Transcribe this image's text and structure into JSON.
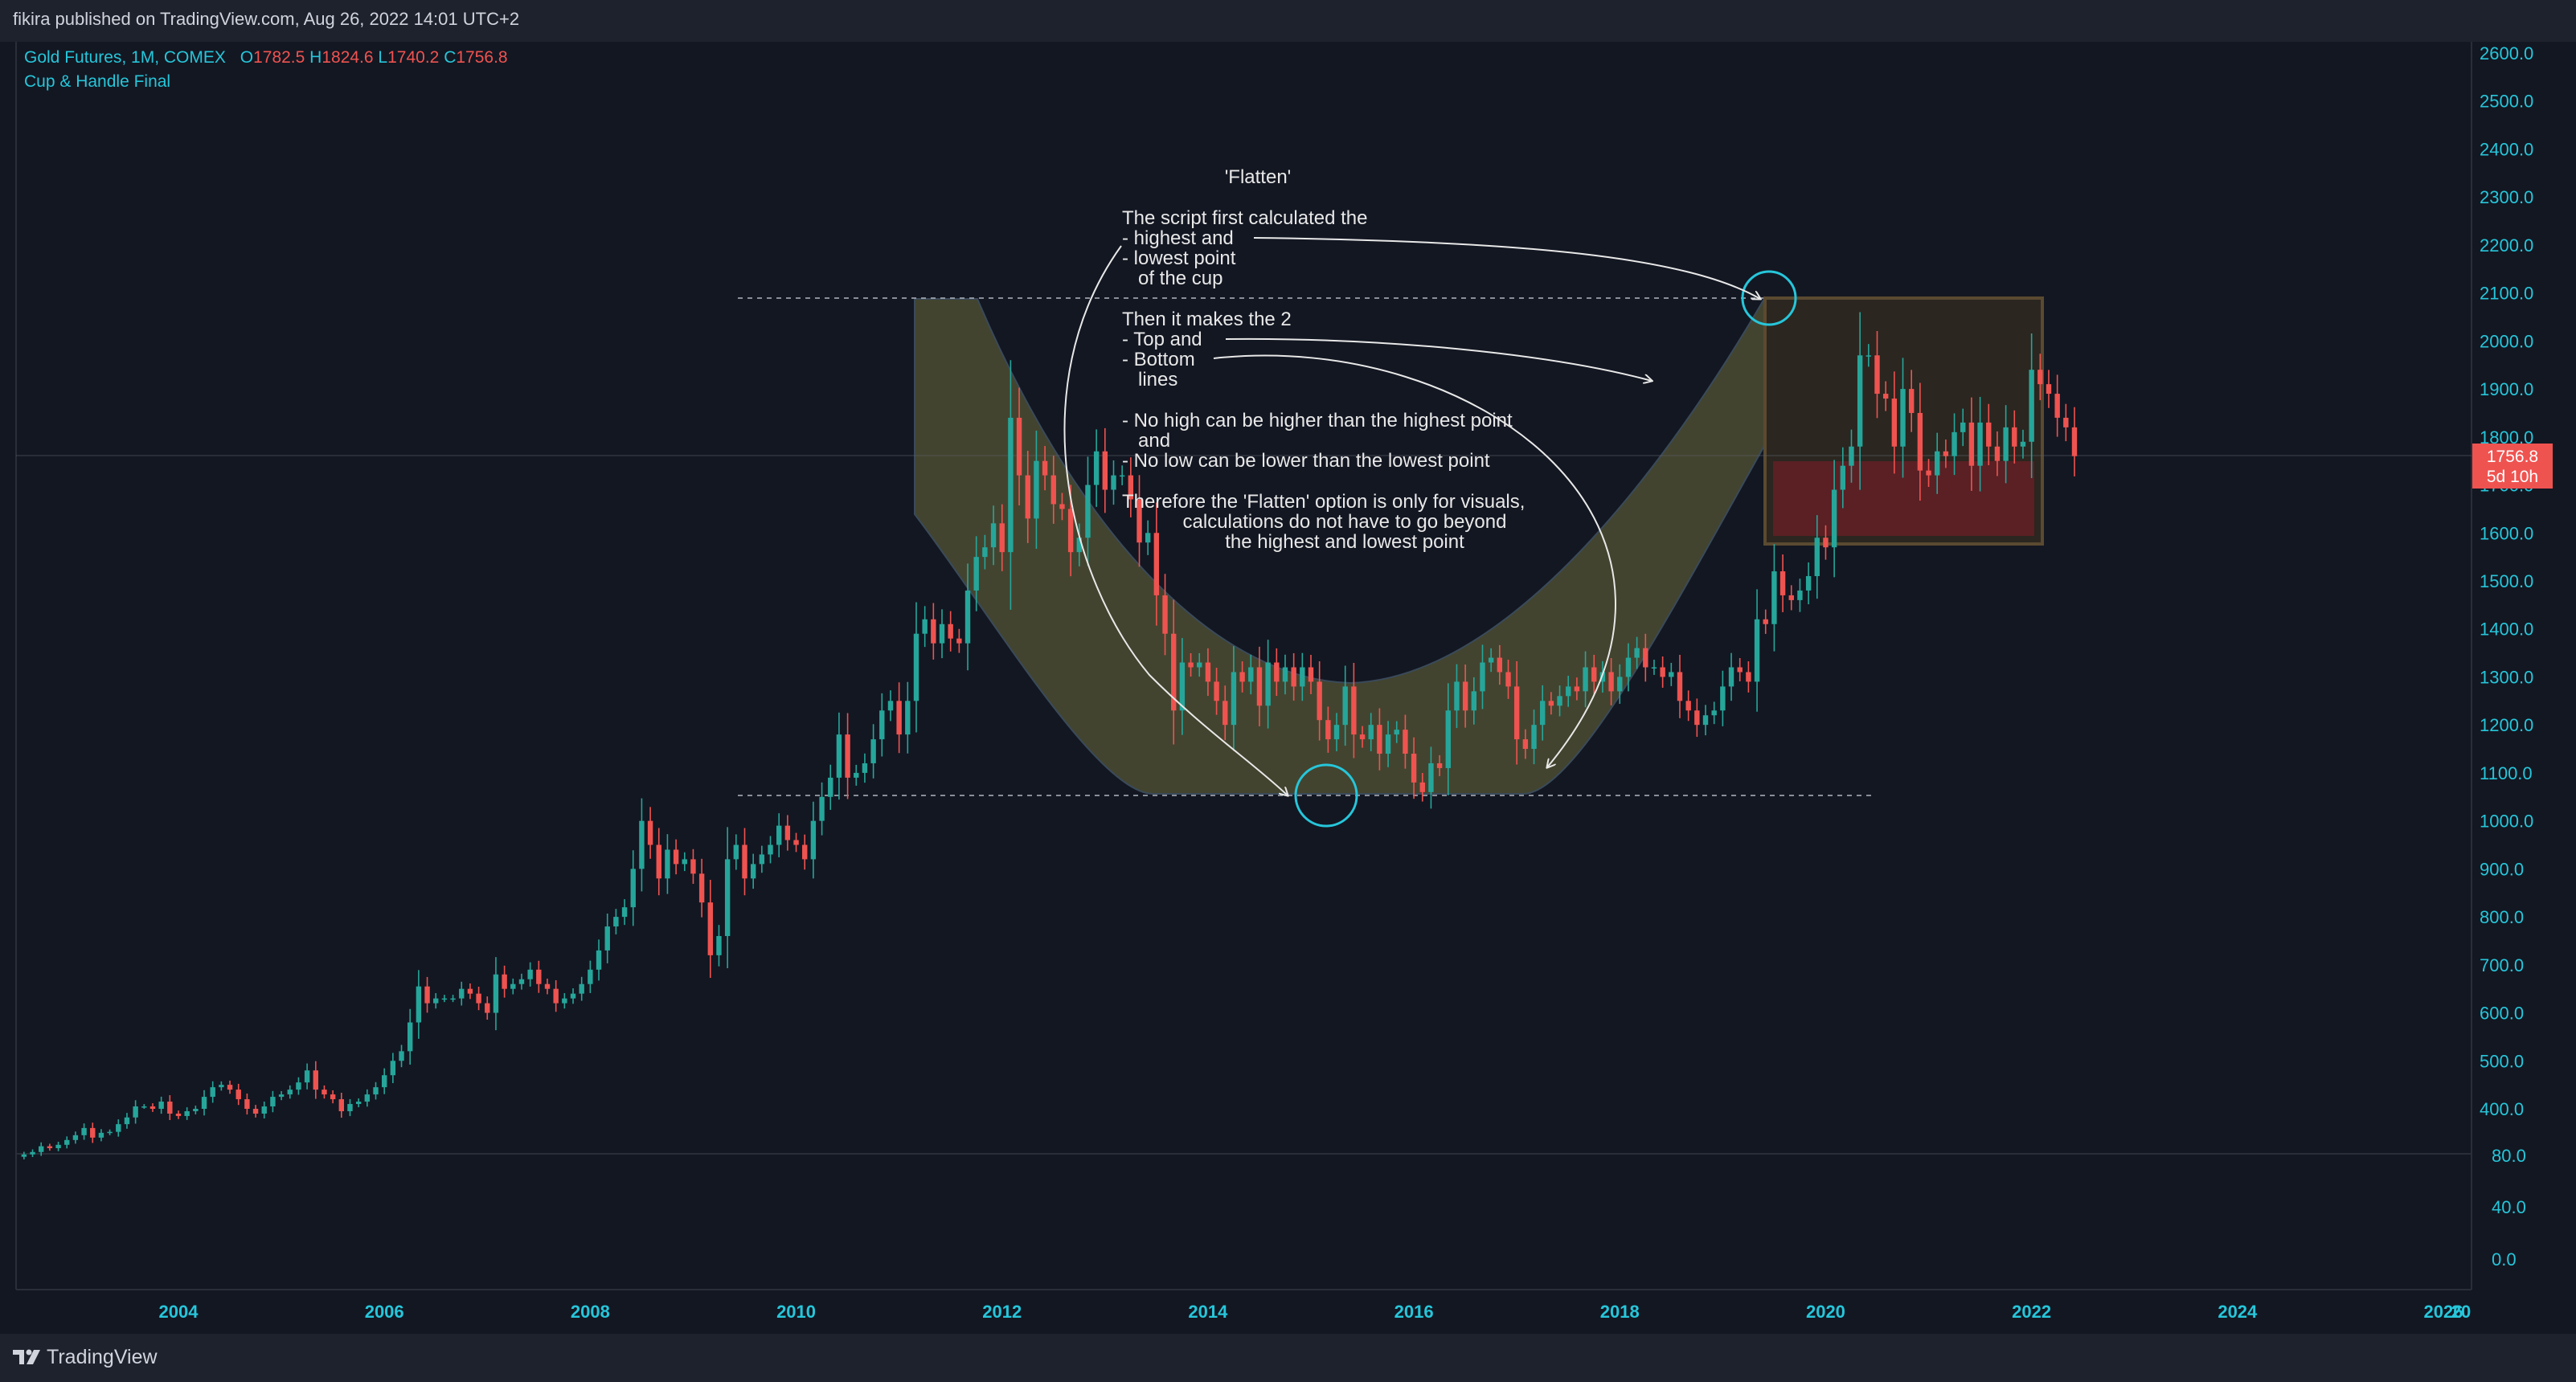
{
  "header": {
    "published": "fikira published on TradingView.com, Aug 26, 2022 14:01 UTC+2"
  },
  "legend": {
    "symbol": "Gold Futures, 1M, COMEX",
    "open_label": "O",
    "open": "1782.5",
    "high_label": "H",
    "high": "1824.6",
    "low_label": "L",
    "low": "1740.2",
    "close_label": "C",
    "close": "1756.8",
    "indicator": "Cup & Handle Final"
  },
  "annotations": {
    "flatten_title": "'Flatten'",
    "lines": [
      "The script first calculated the",
      "- highest and",
      "- lowest point",
      "   of the cup",
      "Then it makes the 2",
      "- Top and",
      "- Bottom",
      "   lines",
      "- No high can be higher than the highest point",
      "   and",
      "- No low can be lower than the lowest point",
      "Therefore the 'Flatten' option is only for visuals,",
      "calculations do not have to go beyond",
      "the highest and lowest point"
    ]
  },
  "price_tag": {
    "price": "1756.8",
    "countdown": "5d 10h"
  },
  "footer": {
    "brand": "TradingView"
  },
  "colors": {
    "up": "#26a69a",
    "down": "#ef5350",
    "accent": "#26c6da",
    "background": "#131722",
    "cup_fill": "#6b6a3a",
    "handle_box": "#5a3a2a"
  },
  "chart_data": {
    "type": "candlestick",
    "panes": [
      {
        "name": "price",
        "ylim": [
          300,
          2650
        ],
        "y_ticks": [
          "2600.0",
          "2500.0",
          "2400.0",
          "2300.0",
          "2200.0",
          "2100.0",
          "2000.0",
          "1900.0",
          "1800.0",
          "1700.0",
          "1600.0",
          "1500.0",
          "1400.0",
          "1300.0",
          "1200.0",
          "1100.0",
          "1000.0",
          "900.0",
          "800.0",
          "700.0",
          "600.0",
          "500.0",
          "400.0"
        ]
      },
      {
        "name": "lower",
        "y_ticks": [
          "80.0",
          "40.0",
          "0.0"
        ]
      }
    ],
    "x_ticks": [
      "2004",
      "2006",
      "2008",
      "2010",
      "2012",
      "2014",
      "2016",
      "2018",
      "2020",
      "2022",
      "2024",
      "2026",
      "20"
    ],
    "xlim": [
      2002.3,
      2027.5
    ],
    "monthly_closes": {
      "start": "2002-07",
      "values": [
        305,
        310,
        322,
        318,
        325,
        335,
        345,
        360,
        340,
        350,
        352,
        368,
        382,
        405,
        405,
        400,
        415,
        390,
        385,
        395,
        400,
        425,
        445,
        450,
        440,
        420,
        400,
        390,
        405,
        425,
        430,
        440,
        455,
        480,
        440,
        430,
        420,
        395,
        410,
        415,
        430,
        445,
        470,
        500,
        520,
        580,
        655,
        620,
        630,
        630,
        630,
        650,
        640,
        620,
        600,
        680,
        650,
        660,
        670,
        690,
        660,
        650,
        620,
        630,
        640,
        660,
        690,
        730,
        780,
        800,
        820,
        900,
        1000,
        950,
        880,
        940,
        910,
        920,
        890,
        830,
        720,
        760,
        920,
        950,
        880,
        910,
        930,
        950,
        990,
        960,
        950,
        920,
        1000,
        1050,
        1090,
        1180,
        1090,
        1100,
        1120,
        1170,
        1230,
        1250,
        1180,
        1250,
        1390,
        1420,
        1370,
        1410,
        1380,
        1370,
        1480,
        1550,
        1570,
        1620,
        1560,
        1840,
        1720,
        1630,
        1750,
        1720,
        1660,
        1650,
        1560,
        1590,
        1700,
        1770,
        1690,
        1720,
        1720,
        1670,
        1580,
        1600,
        1470,
        1390,
        1230,
        1330,
        1320,
        1330,
        1290,
        1250,
        1200,
        1310,
        1290,
        1320,
        1240,
        1330,
        1290,
        1320,
        1280,
        1320,
        1290,
        1210,
        1170,
        1200,
        1280,
        1180,
        1170,
        1200,
        1140,
        1180,
        1190,
        1140,
        1080,
        1060,
        1120,
        1110,
        1230,
        1290,
        1230,
        1270,
        1330,
        1340,
        1310,
        1280,
        1170,
        1150,
        1200,
        1250,
        1240,
        1260,
        1280,
        1270,
        1320,
        1290,
        1310,
        1270,
        1300,
        1340,
        1360,
        1320,
        1320,
        1300,
        1310,
        1250,
        1230,
        1200,
        1220,
        1230,
        1280,
        1320,
        1310,
        1290,
        1420,
        1410,
        1520,
        1470,
        1460,
        1480,
        1510,
        1590,
        1570,
        1690,
        1740,
        1780,
        1970,
        1970,
        1890,
        1880,
        1780,
        1900,
        1850,
        1730,
        1720,
        1770,
        1760,
        1810,
        1830,
        1740,
        1830,
        1780,
        1750,
        1820,
        1780,
        1790,
        1940,
        1910,
        1890,
        1840,
        1820,
        1760
      ]
    }
  }
}
